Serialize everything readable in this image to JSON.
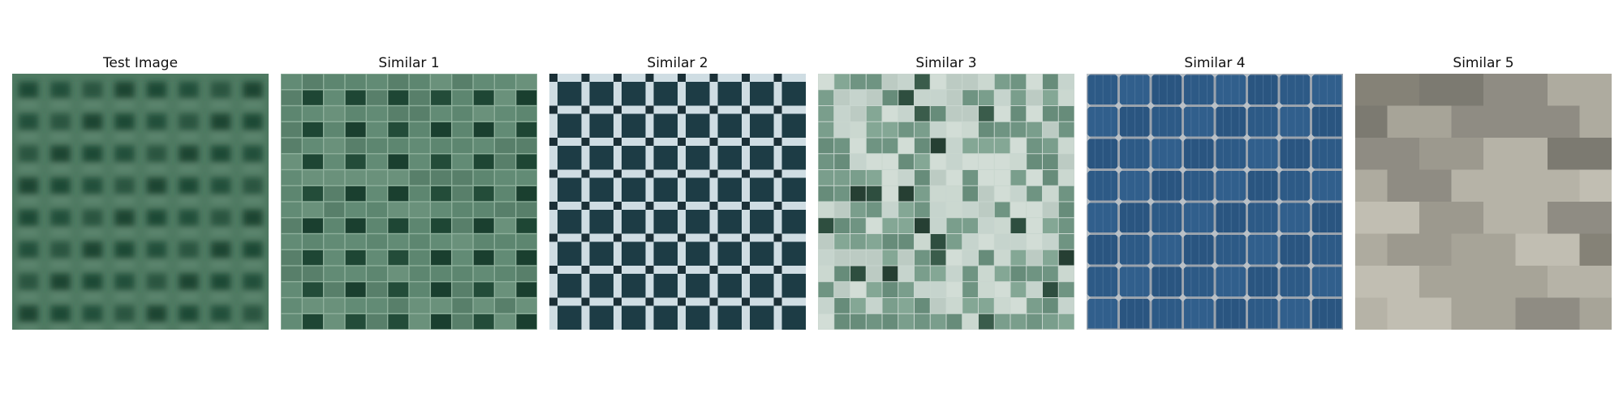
{
  "panels": [
    {
      "title": "Test Image"
    },
    {
      "title": "Similar 1"
    },
    {
      "title": "Similar 2"
    },
    {
      "title": "Similar 3"
    },
    {
      "title": "Similar 4"
    },
    {
      "title": "Similar 5"
    }
  ]
}
